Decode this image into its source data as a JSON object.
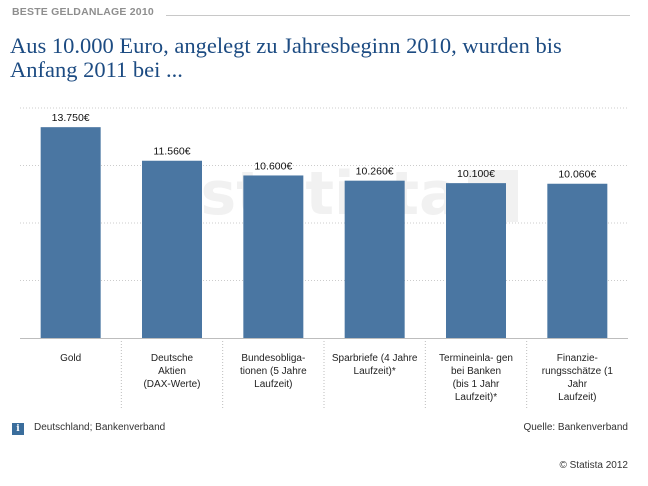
{
  "header": {
    "kicker": "BESTE GELDANLAGE 2010",
    "title": "Aus 10.000 Euro, angelegt zu Jahresbeginn 2010, wurden bis Anfang 2011 bei ..."
  },
  "footer": {
    "info_text": "Deutschland; Bankenverband",
    "source": "Quelle: Bankenverband",
    "copyright": "© Statista 2012"
  },
  "watermark": {
    "text": "statista"
  },
  "colors": {
    "bar": "#4a76a2",
    "title": "#1c4b82",
    "grid": "#cccccc",
    "info_icon": "#3a6d9c"
  },
  "chart_data": {
    "type": "bar",
    "title": "Aus 10.000 Euro, angelegt zu Jahresbeginn 2010, wurden bis Anfang 2011 bei ...",
    "xlabel": "",
    "ylabel": "",
    "unit": "€",
    "ylim": [
      0,
      15000
    ],
    "grid": true,
    "categories": [
      [
        "Gold"
      ],
      [
        "Deutsche",
        "Aktien",
        "(DAX-Werte)"
      ],
      [
        "Bundesobliga-",
        "tionen (5 Jahre",
        "Laufzeit)"
      ],
      [
        "Sparbriefe (4 Jahre",
        "Laufzeit)*"
      ],
      [
        "Termineinla- gen",
        "bei Banken",
        "(bis 1 Jahr",
        "Laufzeit)*"
      ],
      [
        "Finanzie-",
        "rungsschätze (1",
        "Jahr",
        "Laufzeit)"
      ]
    ],
    "values": [
      13750,
      11560,
      10600,
      10260,
      10100,
      10060
    ],
    "value_labels": [
      "13.750€",
      "11.560€",
      "10.600€",
      "10.260€",
      "10.100€",
      "10.060€"
    ]
  }
}
